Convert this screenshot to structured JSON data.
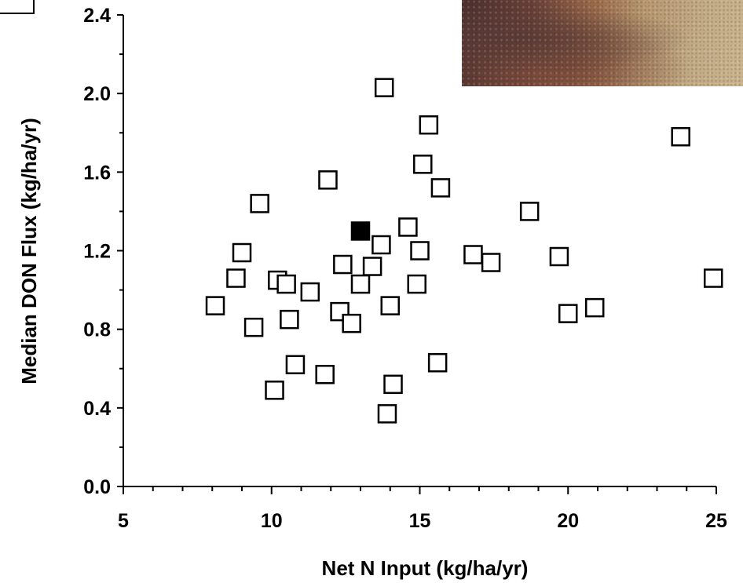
{
  "chart_data": {
    "type": "scatter",
    "title": "",
    "xlabel": "Net N Input (kg/ha/yr)",
    "ylabel": "Median DON Flux (kg/ha/yr)",
    "xlim": [
      5,
      25
    ],
    "ylim": [
      0.0,
      2.4
    ],
    "x_ticks": [
      "5",
      "10",
      "15",
      "20",
      "25"
    ],
    "y_ticks": [
      "0.0",
      "0.4",
      "0.8",
      "1.2",
      "1.6",
      "2.0",
      "2.4"
    ],
    "grid": false,
    "series": [
      {
        "marker": "open-square",
        "points": [
          [
            8.1,
            0.92
          ],
          [
            8.8,
            1.06
          ],
          [
            9.0,
            1.19
          ],
          [
            9.4,
            0.81
          ],
          [
            9.6,
            1.44
          ],
          [
            10.1,
            0.49
          ],
          [
            10.2,
            1.05
          ],
          [
            10.5,
            1.03
          ],
          [
            10.6,
            0.85
          ],
          [
            10.8,
            0.62
          ],
          [
            11.3,
            0.99
          ],
          [
            11.8,
            0.57
          ],
          [
            11.9,
            1.56
          ],
          [
            12.3,
            0.89
          ],
          [
            12.4,
            1.13
          ],
          [
            12.7,
            0.83
          ],
          [
            13.0,
            1.03
          ],
          [
            13.4,
            1.12
          ],
          [
            13.7,
            1.23
          ],
          [
            13.8,
            2.03
          ],
          [
            13.9,
            0.37
          ],
          [
            14.0,
            0.92
          ],
          [
            14.1,
            0.52
          ],
          [
            14.6,
            1.32
          ],
          [
            14.9,
            1.03
          ],
          [
            15.0,
            1.2
          ],
          [
            15.1,
            1.64
          ],
          [
            15.3,
            1.84
          ],
          [
            15.6,
            0.63
          ],
          [
            15.7,
            1.52
          ],
          [
            16.8,
            1.18
          ],
          [
            17.4,
            1.14
          ],
          [
            18.7,
            1.4
          ],
          [
            19.7,
            1.17
          ],
          [
            20.0,
            0.88
          ],
          [
            20.9,
            0.91
          ],
          [
            23.8,
            1.78
          ],
          [
            24.9,
            1.06
          ]
        ]
      },
      {
        "marker": "filled-square",
        "points": [
          [
            13.0,
            1.3
          ]
        ]
      }
    ]
  }
}
